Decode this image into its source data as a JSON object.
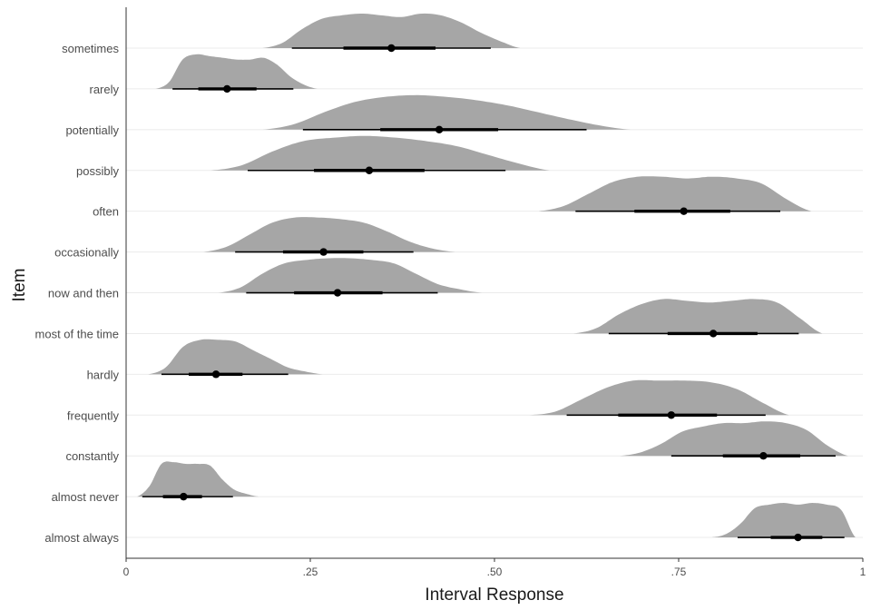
{
  "chart_data": {
    "type": "halfeye",
    "xlabel": "Interval Response",
    "ylabel": "Item",
    "xlim": [
      0,
      1
    ],
    "xticks": [
      {
        "value": 0,
        "label": "0"
      },
      {
        "value": 0.25,
        "label": ".25"
      },
      {
        "value": 0.5,
        "label": ".50"
      },
      {
        "value": 0.75,
        "label": ".75"
      },
      {
        "value": 1,
        "label": "1"
      }
    ],
    "grid": "horizontal-major",
    "colors": {
      "density": "#a6a6a6",
      "interval": "#000000"
    },
    "items": [
      {
        "label": "sometimes",
        "point": 0.36,
        "interval66": [
          0.295,
          0.42
        ],
        "interval95": [
          0.225,
          0.495
        ],
        "support": [
          0.185,
          0.535
        ],
        "shape": [
          0.15,
          0.55,
          0.85,
          0.95,
          1.0,
          0.95,
          0.9,
          1.0,
          0.95,
          0.75,
          0.45,
          0.2
        ]
      },
      {
        "label": "rarely",
        "point": 0.137,
        "interval66": [
          0.098,
          0.177
        ],
        "interval95": [
          0.063,
          0.227
        ],
        "support": [
          0.04,
          0.26
        ],
        "shape": [
          0.2,
          0.85,
          1.0,
          0.95,
          0.9,
          0.85,
          0.85,
          0.9,
          0.7,
          0.35,
          0.12
        ]
      },
      {
        "label": "potentially",
        "point": 0.425,
        "interval66": [
          0.345,
          0.505
        ],
        "interval95": [
          0.24,
          0.625
        ],
        "support": [
          0.185,
          0.685
        ],
        "shape": [
          0.15,
          0.5,
          0.8,
          0.95,
          1.0,
          0.95,
          0.85,
          0.7,
          0.5,
          0.3,
          0.12
        ]
      },
      {
        "label": "possibly",
        "point": 0.33,
        "interval66": [
          0.255,
          0.405
        ],
        "interval95": [
          0.165,
          0.515
        ],
        "support": [
          0.115,
          0.575
        ],
        "shape": [
          0.15,
          0.55,
          0.85,
          0.95,
          1.0,
          0.95,
          0.85,
          0.7,
          0.45,
          0.2
        ]
      },
      {
        "label": "often",
        "point": 0.757,
        "interval66": [
          0.69,
          0.82
        ],
        "interval95": [
          0.61,
          0.888
        ],
        "support": [
          0.56,
          0.93
        ],
        "shape": [
          0.15,
          0.5,
          0.85,
          1.0,
          1.0,
          0.95,
          1.0,
          0.95,
          0.8,
          0.35
        ]
      },
      {
        "label": "occasionally",
        "point": 0.268,
        "interval66": [
          0.213,
          0.322
        ],
        "interval95": [
          0.148,
          0.39
        ],
        "support": [
          0.105,
          0.447
        ],
        "shape": [
          0.15,
          0.5,
          0.85,
          1.0,
          1.0,
          0.95,
          0.85,
          0.6,
          0.3,
          0.1
        ]
      },
      {
        "label": "now and then",
        "point": 0.287,
        "interval66": [
          0.228,
          0.348
        ],
        "interval95": [
          0.163,
          0.423
        ],
        "support": [
          0.125,
          0.483
        ],
        "shape": [
          0.15,
          0.55,
          0.85,
          0.95,
          1.0,
          1.0,
          0.95,
          0.85,
          0.55,
          0.25,
          0.1
        ]
      },
      {
        "label": "most of the time",
        "point": 0.797,
        "interval66": [
          0.735,
          0.857
        ],
        "interval95": [
          0.655,
          0.913
        ],
        "support": [
          0.607,
          0.945
        ],
        "shape": [
          0.15,
          0.55,
          0.85,
          1.0,
          0.95,
          0.9,
          0.95,
          1.0,
          0.9,
          0.45
        ]
      },
      {
        "label": "hardly",
        "point": 0.122,
        "interval66": [
          0.085,
          0.158
        ],
        "interval95": [
          0.048,
          0.22
        ],
        "support": [
          0.03,
          0.267
        ],
        "shape": [
          0.2,
          0.8,
          1.0,
          1.0,
          0.95,
          0.7,
          0.45,
          0.2,
          0.08
        ]
      },
      {
        "label": "frequently",
        "point": 0.74,
        "interval66": [
          0.668,
          0.802
        ],
        "interval95": [
          0.598,
          0.868
        ],
        "support": [
          0.547,
          0.9
        ],
        "shape": [
          0.1,
          0.45,
          0.8,
          1.0,
          1.0,
          1.0,
          0.95,
          0.75,
          0.35
        ]
      },
      {
        "label": "constantly",
        "point": 0.865,
        "interval66": [
          0.81,
          0.915
        ],
        "interval95": [
          0.74,
          0.963
        ],
        "support": [
          0.67,
          0.98
        ],
        "shape": [
          0.1,
          0.35,
          0.7,
          0.85,
          0.95,
          0.95,
          1.0,
          0.95,
          0.75,
          0.3
        ]
      },
      {
        "label": "almost never",
        "point": 0.078,
        "interval66": [
          0.05,
          0.103
        ],
        "interval95": [
          0.022,
          0.145
        ],
        "support": [
          0.015,
          0.18
        ],
        "shape": [
          0.3,
          0.95,
          1.0,
          0.95,
          0.95,
          0.9,
          0.5,
          0.2,
          0.08
        ]
      },
      {
        "label": "almost always",
        "point": 0.912,
        "interval66": [
          0.875,
          0.945
        ],
        "interval95": [
          0.83,
          0.975
        ],
        "support": [
          0.795,
          0.99
        ],
        "shape": [
          0.1,
          0.4,
          0.85,
          0.95,
          1.0,
          0.95,
          1.0,
          0.95,
          0.8
        ]
      }
    ]
  }
}
